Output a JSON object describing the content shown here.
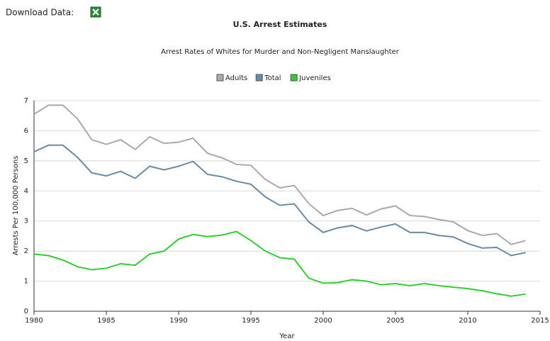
{
  "download_label": "Download Data:",
  "chart_data": {
    "type": "line",
    "title": "U.S. Arrest Estimates",
    "subtitle": "Arrest Rates of Whites for Murder and Non-Negligent Manslaughter",
    "x_label": "Year",
    "y_label": "Arrests Per 100,000 Persons",
    "x": [
      1980,
      1981,
      1982,
      1983,
      1984,
      1985,
      1986,
      1987,
      1988,
      1989,
      1990,
      1991,
      1992,
      1993,
      1994,
      1995,
      1996,
      1997,
      1998,
      1999,
      2000,
      2001,
      2002,
      2003,
      2004,
      2005,
      2006,
      2007,
      2008,
      2009,
      2010,
      2011,
      2012,
      2013,
      2014
    ],
    "series": [
      {
        "name": "Adults",
        "color": "#aaaaaa",
        "values": [
          6.55,
          6.85,
          6.85,
          6.4,
          5.7,
          5.55,
          5.7,
          5.38,
          5.8,
          5.58,
          5.62,
          5.75,
          5.25,
          5.1,
          4.88,
          4.85,
          4.38,
          4.1,
          4.18,
          3.58,
          3.18,
          3.35,
          3.42,
          3.2,
          3.4,
          3.5,
          3.18,
          3.15,
          3.05,
          2.97,
          2.68,
          2.52,
          2.58,
          2.22,
          2.35
        ]
      },
      {
        "name": "Total",
        "color": "#6b8aa3",
        "values": [
          5.3,
          5.52,
          5.52,
          5.12,
          4.6,
          4.5,
          4.65,
          4.42,
          4.82,
          4.7,
          4.82,
          4.98,
          4.55,
          4.47,
          4.32,
          4.22,
          3.8,
          3.52,
          3.57,
          2.97,
          2.62,
          2.77,
          2.85,
          2.67,
          2.8,
          2.9,
          2.62,
          2.62,
          2.52,
          2.47,
          2.25,
          2.1,
          2.12,
          1.85,
          1.95
        ]
      },
      {
        "name": "Juveniles",
        "color": "#33cc33",
        "values": [
          1.9,
          1.85,
          1.7,
          1.48,
          1.38,
          1.43,
          1.58,
          1.53,
          1.9,
          2.0,
          2.4,
          2.55,
          2.48,
          2.53,
          2.65,
          2.35,
          2.0,
          1.78,
          1.73,
          1.1,
          0.93,
          0.95,
          1.05,
          1.0,
          0.88,
          0.92,
          0.85,
          0.92,
          0.85,
          0.8,
          0.75,
          0.68,
          0.58,
          0.5,
          0.57
        ]
      }
    ],
    "xlim": [
      1980,
      2015
    ],
    "xticks": [
      1980,
      1985,
      1990,
      1995,
      2000,
      2005,
      2010,
      2015
    ],
    "ylim": [
      0,
      7
    ],
    "yticks": [
      0,
      1,
      2,
      3,
      4,
      5,
      6,
      7
    ],
    "grid": true,
    "legend": "top"
  }
}
